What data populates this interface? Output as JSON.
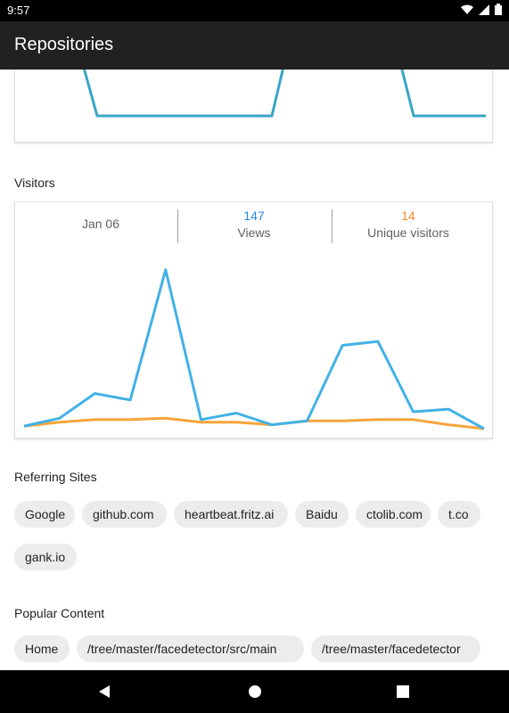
{
  "status_bar": {
    "time": "9:57",
    "wifi_icon": "wifi-icon",
    "signal_icon": "signal-icon",
    "battery_icon": "battery-icon"
  },
  "app_bar": {
    "title": "Repositories"
  },
  "visitors": {
    "section_title": "Visitors",
    "date": "Jan 06",
    "views_value": "147",
    "views_label": "Views",
    "unique_value": "14",
    "unique_label": "Unique visitors",
    "colors": {
      "views": "#42b1e6",
      "unique": "#f5a53a"
    }
  },
  "chart_data": {
    "type": "line",
    "x": [
      1,
      2,
      3,
      4,
      5,
      6,
      7,
      8,
      9,
      10,
      11,
      12,
      13,
      14
    ],
    "series": [
      {
        "name": "Views",
        "values": [
          2,
          8,
          27,
          22,
          122,
          7,
          12,
          3,
          6,
          64,
          67,
          13,
          15,
          0
        ]
      },
      {
        "name": "Unique visitors",
        "values": [
          2,
          5,
          7,
          7,
          8,
          5,
          5,
          3,
          6,
          6,
          7,
          7,
          3,
          0
        ]
      }
    ],
    "ylim": [
      0,
      130
    ],
    "grid": false
  },
  "referring_sites": {
    "section_title": "Referring Sites",
    "chips": [
      "Google",
      "github.com",
      "heartbeat.fritz.ai",
      "Baidu",
      "ctolib.com",
      "t.co",
      "gank.io"
    ]
  },
  "popular_content": {
    "section_title": "Popular Content",
    "chips": [
      "Home",
      "/tree/master/facedetector/src/main",
      "/tree/master/facedetector"
    ]
  },
  "nav_bar": {
    "back_icon": "back-icon",
    "home_icon": "home-icon",
    "recents_icon": "recents-icon"
  }
}
